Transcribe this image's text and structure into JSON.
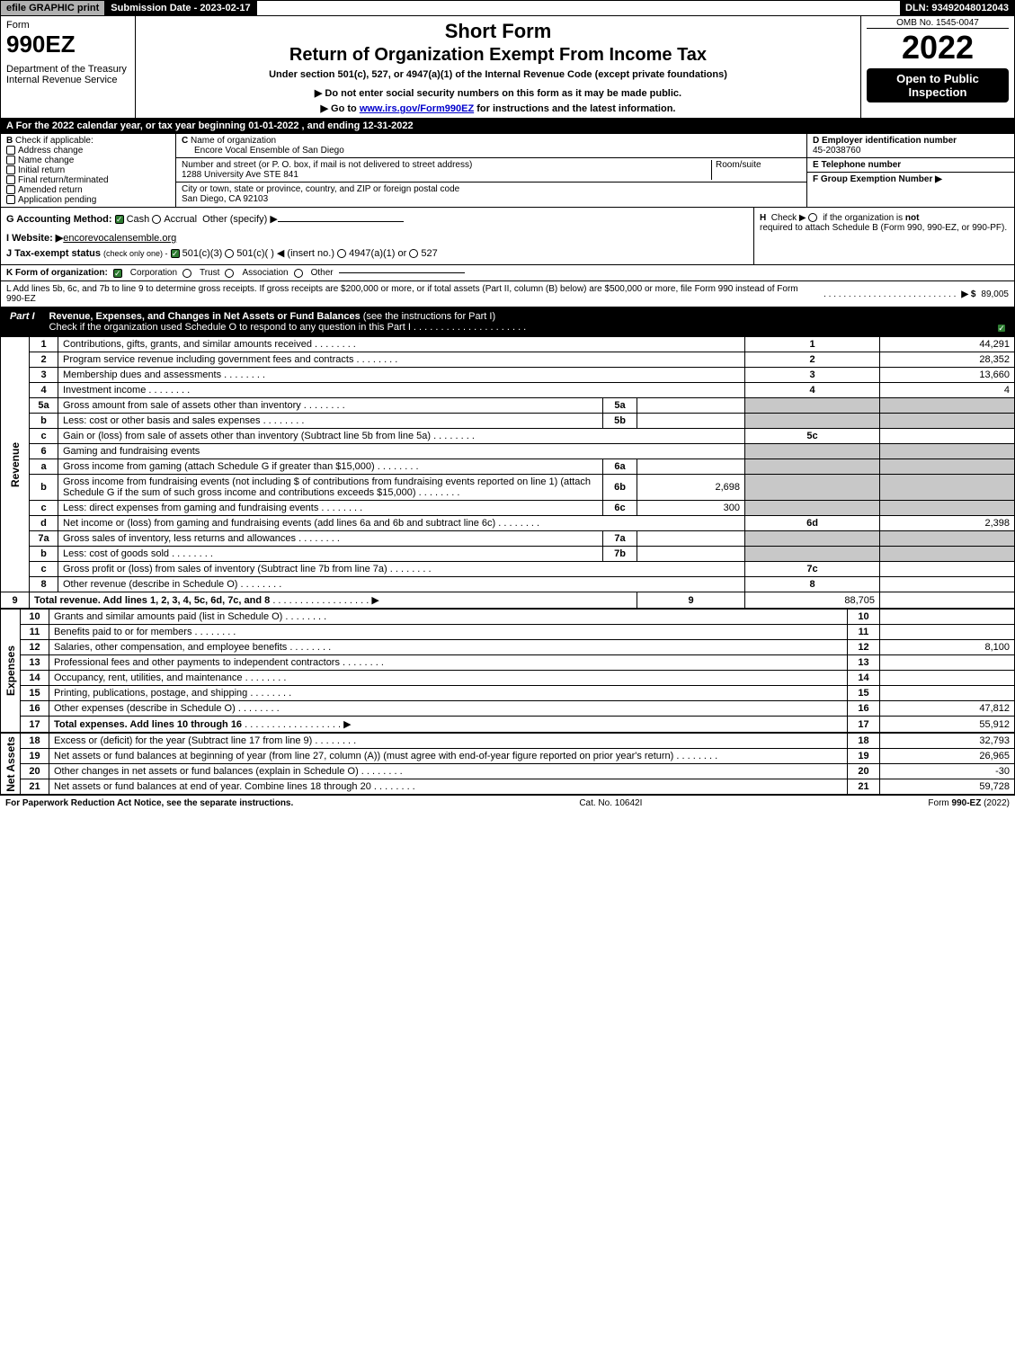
{
  "topbar": {
    "efile": "efile GRAPHIC print",
    "submission_label": "Submission Date - 2023-02-17",
    "dln": "DLN: 93492048012043"
  },
  "header": {
    "form_word": "Form",
    "form_number": "990EZ",
    "dept1": "Department of the Treasury",
    "dept2": "Internal Revenue Service",
    "title1": "Short Form",
    "title2": "Return of Organization Exempt From Income Tax",
    "subtitle": "Under section 501(c), 527, or 4947(a)(1) of the Internal Revenue Code (except private foundations)",
    "warn1": "▶ Do not enter social security numbers on this form as it may be made public.",
    "warn2_pre": "▶ Go to ",
    "warn2_link": "www.irs.gov/Form990EZ",
    "warn2_post": " for instructions and the latest information.",
    "omb": "OMB No. 1545-0047",
    "year": "2022",
    "open": "Open to Public Inspection"
  },
  "line_a": "A  For the 2022 calendar year, or tax year beginning 01-01-2022 , and ending 12-31-2022",
  "section_b": {
    "b_label": "B",
    "check_applicable": "Check if applicable:",
    "items": [
      "Address change",
      "Name change",
      "Initial return",
      "Final return/terminated",
      "Amended return",
      "Application pending"
    ]
  },
  "section_c": {
    "c_label": "C",
    "name_label": "Name of organization",
    "name": "Encore Vocal Ensemble of San Diego",
    "addr_label": "Number and street (or P. O. box, if mail is not delivered to street address)",
    "room_label": "Room/suite",
    "addr": "1288 University Ave STE 841",
    "city_label": "City or town, state or province, country, and ZIP or foreign postal code",
    "city": "San Diego, CA  92103"
  },
  "section_de": {
    "d_label": "D Employer identification number",
    "ein": "45-2038760",
    "e_label": "E Telephone number",
    "f_label": "F Group Exemption Number",
    "f_arrow": "▶"
  },
  "line_g": {
    "label": "G Accounting Method:",
    "cash": "Cash",
    "accrual": "Accrual",
    "other": "Other (specify) ▶"
  },
  "line_h": {
    "label": "H",
    "text": "Check ▶",
    "cb": "if the organization is",
    "not": "not",
    "rest": "required to attach Schedule B (Form 990, 990-EZ, or 990-PF)."
  },
  "line_i": {
    "label": "I Website: ▶",
    "val": "encorevocalensemble.org"
  },
  "line_j": {
    "label": "J Tax-exempt status",
    "note": "(check only one) -",
    "o1": "501(c)(3)",
    "o2": "501(c)(  ) ◀ (insert no.)",
    "o3": "4947(a)(1) or",
    "o4": "527"
  },
  "line_k": {
    "label": "K Form of organization:",
    "o1": "Corporation",
    "o2": "Trust",
    "o3": "Association",
    "o4": "Other"
  },
  "line_l": {
    "text": "L Add lines 5b, 6c, and 7b to line 9 to determine gross receipts. If gross receipts are $200,000 or more, or if total assets (Part II, column (B) below) are $500,000 or more, file Form 990 instead of Form 990-EZ",
    "arrow": "▶ $",
    "val": "89,005"
  },
  "part1": {
    "label": "Part I",
    "title": "Revenue, Expenses, and Changes in Net Assets or Fund Balances",
    "note": "(see the instructions for Part I)",
    "check_text": "Check if the organization used Schedule O to respond to any question in this Part I"
  },
  "vlabels": {
    "rev": "Revenue",
    "exp": "Expenses",
    "na": "Net Assets"
  },
  "rows": [
    {
      "n": "1",
      "d": "Contributions, gifts, grants, and similar amounts received",
      "r": "1",
      "a": "44,291"
    },
    {
      "n": "2",
      "d": "Program service revenue including government fees and contracts",
      "r": "2",
      "a": "28,352"
    },
    {
      "n": "3",
      "d": "Membership dues and assessments",
      "r": "3",
      "a": "13,660"
    },
    {
      "n": "4",
      "d": "Investment income",
      "r": "4",
      "a": "4"
    },
    {
      "n": "5a",
      "d": "Gross amount from sale of assets other than inventory",
      "m": "5a",
      "mv": ""
    },
    {
      "n": "b",
      "d": "Less: cost or other basis and sales expenses",
      "m": "5b",
      "mv": ""
    },
    {
      "n": "c",
      "d": "Gain or (loss) from sale of assets other than inventory (Subtract line 5b from line 5a)",
      "r": "5c",
      "a": ""
    },
    {
      "n": "6",
      "d": "Gaming and fundraising events",
      "shade": true
    },
    {
      "n": "a",
      "d": "Gross income from gaming (attach Schedule G if greater than $15,000)",
      "m": "6a",
      "mv": ""
    },
    {
      "n": "b",
      "d": "Gross income from fundraising events (not including $                      of contributions from fundraising events reported on line 1) (attach Schedule G if the sum of such gross income and contributions exceeds $15,000)",
      "m": "6b",
      "mv": "2,698"
    },
    {
      "n": "c",
      "d": "Less: direct expenses from gaming and fundraising events",
      "m": "6c",
      "mv": "300"
    },
    {
      "n": "d",
      "d": "Net income or (loss) from gaming and fundraising events (add lines 6a and 6b and subtract line 6c)",
      "r": "6d",
      "a": "2,398"
    },
    {
      "n": "7a",
      "d": "Gross sales of inventory, less returns and allowances",
      "m": "7a",
      "mv": ""
    },
    {
      "n": "b",
      "d": "Less: cost of goods sold",
      "m": "7b",
      "mv": ""
    },
    {
      "n": "c",
      "d": "Gross profit or (loss) from sales of inventory (Subtract line 7b from line 7a)",
      "r": "7c",
      "a": ""
    },
    {
      "n": "8",
      "d": "Other revenue (describe in Schedule O)",
      "r": "8",
      "a": ""
    },
    {
      "n": "9",
      "d": "Total revenue. Add lines 1, 2, 3, 4, 5c, 6d, 7c, and 8",
      "bold": true,
      "arrow": true,
      "r": "9",
      "a": "88,705"
    }
  ],
  "exp_rows": [
    {
      "n": "10",
      "d": "Grants and similar amounts paid (list in Schedule O)",
      "r": "10",
      "a": ""
    },
    {
      "n": "11",
      "d": "Benefits paid to or for members",
      "r": "11",
      "a": ""
    },
    {
      "n": "12",
      "d": "Salaries, other compensation, and employee benefits",
      "r": "12",
      "a": "8,100"
    },
    {
      "n": "13",
      "d": "Professional fees and other payments to independent contractors",
      "r": "13",
      "a": ""
    },
    {
      "n": "14",
      "d": "Occupancy, rent, utilities, and maintenance",
      "r": "14",
      "a": ""
    },
    {
      "n": "15",
      "d": "Printing, publications, postage, and shipping",
      "r": "15",
      "a": ""
    },
    {
      "n": "16",
      "d": "Other expenses (describe in Schedule O)",
      "r": "16",
      "a": "47,812"
    },
    {
      "n": "17",
      "d": "Total expenses. Add lines 10 through 16",
      "bold": true,
      "arrow": true,
      "r": "17",
      "a": "55,912"
    }
  ],
  "na_rows": [
    {
      "n": "18",
      "d": "Excess or (deficit) for the year (Subtract line 17 from line 9)",
      "r": "18",
      "a": "32,793"
    },
    {
      "n": "19",
      "d": "Net assets or fund balances at beginning of year (from line 27, column (A)) (must agree with end-of-year figure reported on prior year's return)",
      "r": "19",
      "a": "26,965"
    },
    {
      "n": "20",
      "d": "Other changes in net assets or fund balances (explain in Schedule O)",
      "r": "20",
      "a": "-30"
    },
    {
      "n": "21",
      "d": "Net assets or fund balances at end of year. Combine lines 18 through 20",
      "r": "21",
      "a": "59,728"
    }
  ],
  "footer": {
    "left": "For Paperwork Reduction Act Notice, see the separate instructions.",
    "mid": "Cat. No. 10642I",
    "right_pre": "Form ",
    "right_bold": "990-EZ",
    "right_post": " (2022)"
  }
}
